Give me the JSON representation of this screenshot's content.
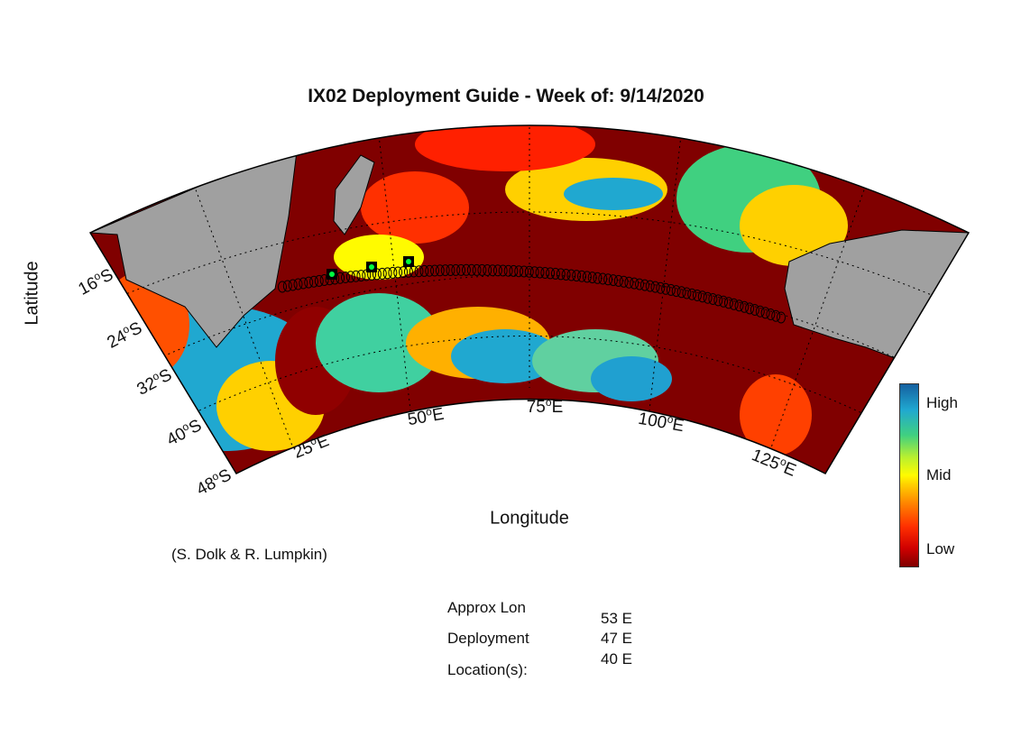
{
  "title": "IX02 Deployment Guide - Week of: 9/14/2020",
  "axes": {
    "ylabel": "Latitude",
    "xlabel": "Longitude",
    "lat_ticks": [
      {
        "value": "16",
        "hemi": "S"
      },
      {
        "value": "24",
        "hemi": "S"
      },
      {
        "value": "32",
        "hemi": "S"
      },
      {
        "value": "40",
        "hemi": "S"
      },
      {
        "value": "48",
        "hemi": "S"
      }
    ],
    "lon_ticks": [
      {
        "value": "25",
        "hemi": "E"
      },
      {
        "value": "50",
        "hemi": "E"
      },
      {
        "value": "75",
        "hemi": "E"
      },
      {
        "value": "100",
        "hemi": "E"
      },
      {
        "value": "125",
        "hemi": "E"
      }
    ],
    "degree_symbol": "o"
  },
  "colorbar": {
    "high": "High",
    "mid": "Mid",
    "low": "Low",
    "colors": [
      "#7f0000",
      "#ff3000",
      "#fffb00",
      "#40d080",
      "#1560a0"
    ]
  },
  "credit": "(S. Dolk & R. Lumpkin)",
  "deployment": {
    "label_line1": "Approx Lon",
    "label_line2": "Deployment",
    "label_line3": "Location(s):",
    "values": [
      "53 E",
      "47 E",
      "40 E"
    ]
  },
  "map": {
    "land_color": "#a0a0a0",
    "ocean_low_color": "#800000",
    "track_marker_color": "#000000",
    "deploy_marker_color": "#00ff40"
  }
}
